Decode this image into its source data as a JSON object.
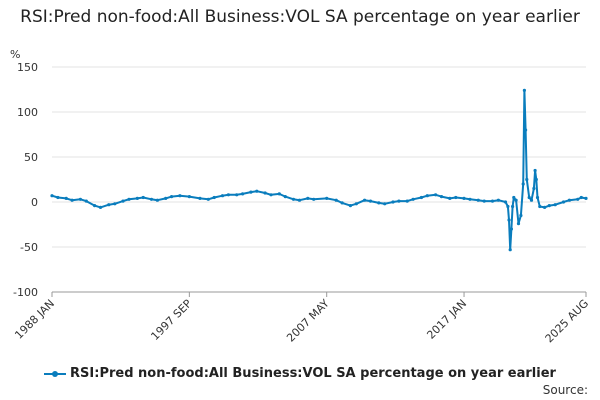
{
  "chart_data": {
    "type": "line",
    "title": "RSI:Pred non-food:All Business:VOL SA percentage on year earlier",
    "ylabel": "%",
    "ylim": [
      -100,
      150
    ],
    "yticks": [
      150,
      100,
      50,
      0,
      -50,
      -100
    ],
    "xlim": [
      "1988-01",
      "2025-08"
    ],
    "xticks": [
      "1988 JAN",
      "1997 SEP",
      "2007 MAY",
      "2017 JAN",
      "2025 AUG"
    ],
    "grid": "horizontal",
    "legend_position": "bottom",
    "series": [
      {
        "name": "RSI:Pred non-food:All Business:VOL SA percentage on year earlier",
        "color": "#0a7dbd",
        "points": [
          [
            "1988-01",
            7
          ],
          [
            "1988-06",
            5
          ],
          [
            "1989-01",
            4
          ],
          [
            "1989-06",
            2
          ],
          [
            "1990-01",
            3
          ],
          [
            "1990-06",
            1
          ],
          [
            "1991-01",
            -4
          ],
          [
            "1991-06",
            -6
          ],
          [
            "1992-01",
            -3
          ],
          [
            "1992-06",
            -2
          ],
          [
            "1993-01",
            1
          ],
          [
            "1993-06",
            3
          ],
          [
            "1994-01",
            4
          ],
          [
            "1994-06",
            5
          ],
          [
            "1995-01",
            3
          ],
          [
            "1995-06",
            2
          ],
          [
            "1996-01",
            4
          ],
          [
            "1996-06",
            6
          ],
          [
            "1997-01",
            7
          ],
          [
            "1997-09",
            6
          ],
          [
            "1998-06",
            4
          ],
          [
            "1999-01",
            3
          ],
          [
            "1999-06",
            5
          ],
          [
            "2000-01",
            7
          ],
          [
            "2000-06",
            8
          ],
          [
            "2001-01",
            8
          ],
          [
            "2001-06",
            9
          ],
          [
            "2002-01",
            11
          ],
          [
            "2002-06",
            12
          ],
          [
            "2003-01",
            10
          ],
          [
            "2003-06",
            8
          ],
          [
            "2004-01",
            9
          ],
          [
            "2004-06",
            6
          ],
          [
            "2005-01",
            3
          ],
          [
            "2005-06",
            2
          ],
          [
            "2006-01",
            4
          ],
          [
            "2006-06",
            3
          ],
          [
            "2007-05",
            4
          ],
          [
            "2008-01",
            2
          ],
          [
            "2008-06",
            -1
          ],
          [
            "2009-01",
            -4
          ],
          [
            "2009-06",
            -2
          ],
          [
            "2010-01",
            2
          ],
          [
            "2010-06",
            1
          ],
          [
            "2011-01",
            -1
          ],
          [
            "2011-06",
            -2
          ],
          [
            "2012-01",
            0
          ],
          [
            "2012-06",
            1
          ],
          [
            "2013-01",
            1
          ],
          [
            "2013-06",
            3
          ],
          [
            "2014-01",
            5
          ],
          [
            "2014-06",
            7
          ],
          [
            "2015-01",
            8
          ],
          [
            "2015-06",
            6
          ],
          [
            "2016-01",
            4
          ],
          [
            "2016-06",
            5
          ],
          [
            "2017-01",
            4
          ],
          [
            "2017-06",
            3
          ],
          [
            "2018-01",
            2
          ],
          [
            "2018-06",
            1
          ],
          [
            "2019-01",
            1
          ],
          [
            "2019-06",
            2
          ],
          [
            "2019-12",
            0
          ],
          [
            "2020-02",
            -5
          ],
          [
            "2020-03",
            -20
          ],
          [
            "2020-04",
            -53
          ],
          [
            "2020-05",
            -30
          ],
          [
            "2020-06",
            -5
          ],
          [
            "2020-07",
            5
          ],
          [
            "2020-09",
            2
          ],
          [
            "2020-11",
            -24
          ],
          [
            "2021-01",
            -15
          ],
          [
            "2021-03",
            20
          ],
          [
            "2021-04",
            124
          ],
          [
            "2021-05",
            80
          ],
          [
            "2021-06",
            25
          ],
          [
            "2021-08",
            5
          ],
          [
            "2021-10",
            2
          ],
          [
            "2021-12",
            15
          ],
          [
            "2022-01",
            35
          ],
          [
            "2022-02",
            25
          ],
          [
            "2022-03",
            5
          ],
          [
            "2022-05",
            -5
          ],
          [
            "2022-09",
            -6
          ],
          [
            "2023-01",
            -4
          ],
          [
            "2023-06",
            -3
          ],
          [
            "2024-01",
            0
          ],
          [
            "2024-06",
            2
          ],
          [
            "2025-01",
            3
          ],
          [
            "2025-04",
            5
          ],
          [
            "2025-08",
            4
          ]
        ]
      }
    ]
  },
  "footer": {
    "source_label": "Source:"
  }
}
